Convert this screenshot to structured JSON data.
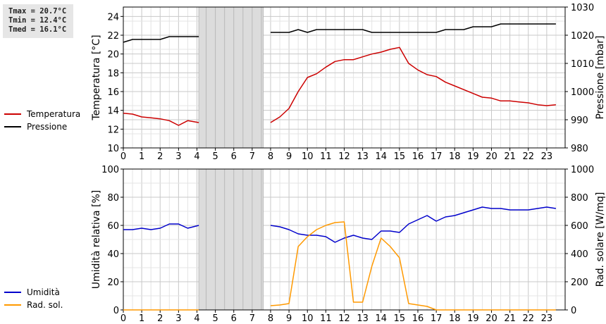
{
  "stats": {
    "tmax": "Tmax = 20.7°C",
    "tmin": "Tmin = 12.4°C",
    "tmed": "Tmed = 16.1°C"
  },
  "legend_top": [
    {
      "label": "Temperatura",
      "color": "#cc0000"
    },
    {
      "label": "Pressione",
      "color": "#000000"
    }
  ],
  "legend_bottom": [
    {
      "label": "Umidità",
      "color": "#0000cc"
    },
    {
      "label": "Rad. sol.",
      "color": "#ff9900"
    }
  ],
  "chart_data": [
    {
      "type": "line",
      "ylabel": "Temperatura [°C]",
      "y2label": "Pressione [mbar]",
      "xlim": [
        0,
        24
      ],
      "ylim": [
        10,
        25
      ],
      "y2lim": [
        980,
        1030
      ],
      "xticks": [
        0,
        1,
        2,
        3,
        4,
        5,
        6,
        7,
        8,
        9,
        10,
        11,
        12,
        13,
        14,
        15,
        16,
        17,
        18,
        19,
        20,
        21,
        22,
        23
      ],
      "yticks": [
        10,
        12,
        14,
        16,
        18,
        20,
        22,
        24
      ],
      "y2ticks": [
        980,
        990,
        1000,
        1010,
        1020,
        1030
      ],
      "grid": true,
      "gap": [
        4.1,
        7.6
      ],
      "series": [
        {
          "name": "Temperatura",
          "color": "#cc0000",
          "axis": "left",
          "segments": [
            {
              "x": [
                0,
                0.5,
                1,
                1.5,
                2,
                2.5,
                3,
                3.5,
                4.1
              ],
              "y": [
                13.7,
                13.6,
                13.3,
                13.2,
                13.1,
                12.9,
                12.4,
                12.9,
                12.7
              ]
            },
            {
              "x": [
                8,
                8.5,
                9,
                9.5,
                10,
                10.5,
                11,
                11.5,
                12,
                12.5,
                13,
                13.5,
                14,
                14.5,
                15,
                15.5,
                16,
                16.5,
                17,
                17.5,
                18,
                18.5,
                19,
                19.5,
                20,
                20.5,
                21,
                21.5,
                22,
                22.5,
                23,
                23.5
              ],
              "y": [
                12.7,
                13.3,
                14.2,
                16.0,
                17.5,
                17.9,
                18.6,
                19.2,
                19.4,
                19.4,
                19.7,
                20.0,
                20.2,
                20.5,
                20.7,
                19.0,
                18.3,
                17.8,
                17.6,
                17.0,
                16.6,
                16.2,
                15.8,
                15.4,
                15.3,
                15.0,
                15.0,
                14.9,
                14.8,
                14.6,
                14.5,
                14.6
              ]
            }
          ]
        },
        {
          "name": "Pressione",
          "color": "#000000",
          "axis": "right",
          "segments": [
            {
              "x": [
                0,
                0.5,
                1,
                1.5,
                2,
                2.5,
                3,
                3.5,
                4.1
              ],
              "y": [
                1017.5,
                1018.5,
                1018.5,
                1018.5,
                1018.5,
                1019.5,
                1019.5,
                1019.5,
                1019.5
              ]
            },
            {
              "x": [
                8,
                8.5,
                9,
                9.5,
                10,
                10.5,
                11,
                11.5,
                12,
                12.5,
                13,
                13.5,
                14,
                14.5,
                15,
                15.5,
                16,
                16.5,
                17,
                17.5,
                18,
                18.5,
                19,
                19.5,
                20,
                20.5,
                21,
                21.5,
                22,
                22.5,
                23,
                23.5
              ],
              "y": [
                1021,
                1021,
                1021,
                1022,
                1021,
                1022,
                1022,
                1022,
                1022,
                1022,
                1022,
                1021,
                1021,
                1021,
                1021,
                1021,
                1021,
                1021,
                1021,
                1022,
                1022,
                1022,
                1023,
                1023,
                1023,
                1024,
                1024,
                1024,
                1024,
                1024,
                1024,
                1024
              ]
            }
          ]
        }
      ]
    },
    {
      "type": "line",
      "ylabel": "Umidità relativa [%]",
      "y2label": "Rad. solare [W/mq]",
      "xlim": [
        0,
        24
      ],
      "ylim": [
        0,
        100
      ],
      "y2lim": [
        0,
        1000
      ],
      "xticks": [
        0,
        1,
        2,
        3,
        4,
        5,
        6,
        7,
        8,
        9,
        10,
        11,
        12,
        13,
        14,
        15,
        16,
        17,
        18,
        19,
        20,
        21,
        22,
        23
      ],
      "yticks": [
        0,
        20,
        40,
        60,
        80,
        100
      ],
      "y2ticks": [
        0,
        200,
        400,
        600,
        800,
        1000
      ],
      "grid": true,
      "gap": [
        4.1,
        7.6
      ],
      "series": [
        {
          "name": "Umidità",
          "color": "#0000cc",
          "axis": "left",
          "segments": [
            {
              "x": [
                0,
                0.5,
                1,
                1.5,
                2,
                2.5,
                3,
                3.5,
                4.1
              ],
              "y": [
                57,
                57,
                58,
                57,
                58,
                61,
                61,
                58,
                60
              ]
            },
            {
              "x": [
                8,
                8.5,
                9,
                9.5,
                10,
                10.5,
                11,
                11.5,
                12,
                12.5,
                13,
                13.5,
                14,
                14.5,
                15,
                15.5,
                16,
                16.5,
                17,
                17.5,
                18,
                18.5,
                19,
                19.5,
                20,
                20.5,
                21,
                21.5,
                22,
                22.5,
                23,
                23.5
              ],
              "y": [
                60,
                59,
                57,
                54,
                53,
                53,
                52,
                48,
                51,
                53,
                51,
                50,
                56,
                56,
                55,
                61,
                64,
                67,
                63,
                66,
                67,
                69,
                71,
                73,
                72,
                72,
                71,
                71,
                71,
                72,
                73,
                72
              ]
            }
          ]
        },
        {
          "name": "Rad. sol.",
          "color": "#ff9900",
          "axis": "right",
          "segments": [
            {
              "x": [
                0,
                0.5,
                1,
                1.5,
                2,
                2.5,
                3,
                3.5,
                4.1
              ],
              "y": [
                0,
                0,
                0,
                0,
                0,
                0,
                0,
                0,
                0
              ]
            },
            {
              "x": [
                8,
                8.5,
                9,
                9.5,
                10,
                10.5,
                11,
                11.5,
                12,
                12.5,
                13,
                13.5,
                14,
                14.5,
                15,
                15.5,
                16,
                16.5,
                17,
                17.5,
                18,
                18.5,
                19,
                19.5,
                20,
                20.5,
                21,
                21.5,
                22,
                22.5,
                23,
                23.5
              ],
              "y": [
                30,
                35,
                45,
                450,
                520,
                570,
                600,
                620,
                625,
                55,
                55,
                310,
                510,
                450,
                370,
                45,
                35,
                25,
                0,
                0,
                0,
                0,
                0,
                0,
                0,
                0,
                0,
                0,
                0,
                0,
                0,
                0
              ]
            }
          ]
        }
      ]
    }
  ]
}
